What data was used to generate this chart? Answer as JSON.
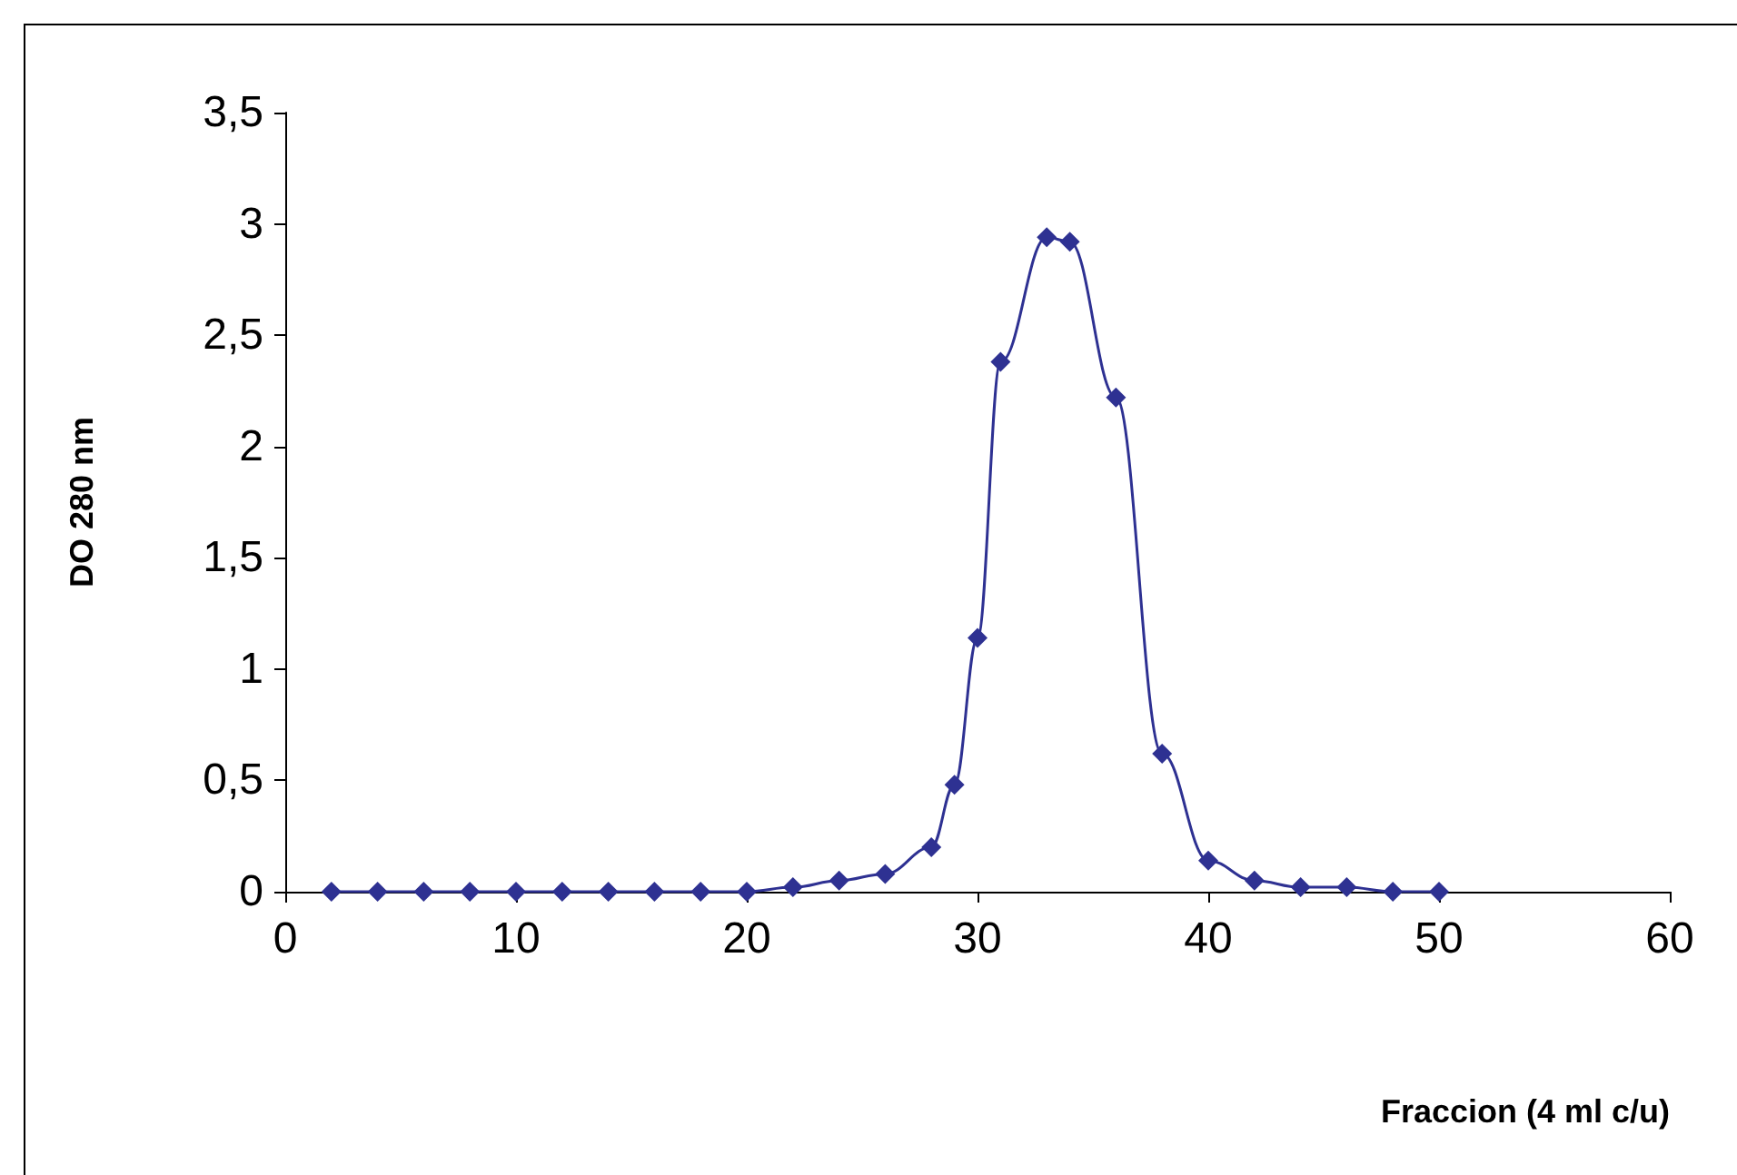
{
  "chart_data": {
    "type": "line",
    "xlabel": "Fraccion (4 ml c/u)",
    "ylabel": "DO 280 nm",
    "x": [
      2,
      4,
      6,
      8,
      10,
      12,
      14,
      16,
      18,
      20,
      22,
      24,
      26,
      28,
      29,
      30,
      31,
      33,
      34,
      36,
      38,
      40,
      42,
      44,
      46,
      48,
      50
    ],
    "series": [
      {
        "color": "#2e3192",
        "values": [
          0,
          0,
          0,
          0,
          0,
          0,
          0,
          0,
          0,
          0,
          0.02,
          0.05,
          0.08,
          0.2,
          0.48,
          1.14,
          2.38,
          2.94,
          2.92,
          2.22,
          0.62,
          0.14,
          0.05,
          0.02,
          0.02,
          0,
          0
        ]
      }
    ],
    "xlim": [
      0,
      60
    ],
    "xticks": [
      0,
      10,
      20,
      30,
      40,
      50,
      60
    ],
    "ylim": [
      0,
      3.5
    ],
    "yticks": [
      0,
      {
        "value": 0.5,
        "label": "0,5"
      },
      1,
      {
        "value": 1.5,
        "label": "1,5"
      },
      2,
      {
        "value": 2.5,
        "label": "2,5"
      },
      3,
      {
        "value": 3.5,
        "label": "3,5"
      }
    ],
    "grid": false,
    "marker": "diamond",
    "line_style": "solid"
  }
}
